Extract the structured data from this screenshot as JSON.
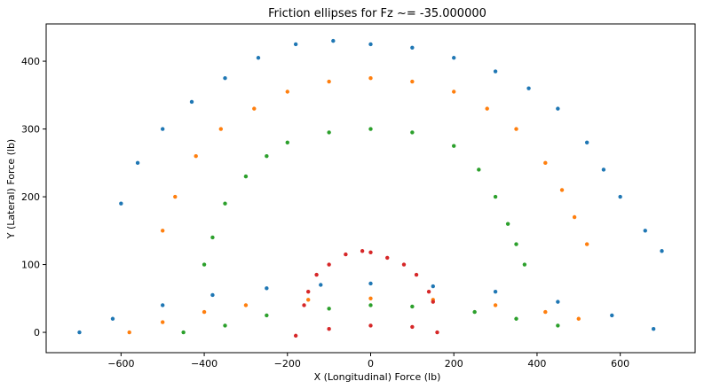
{
  "chart_data": {
    "type": "scatter",
    "title": "Friction ellipses for Fz ~= -35.000000",
    "xlabel": "X (Longitudinal) Force (lb)",
    "ylabel": "Y (Lateral) Force (lb)",
    "xlim": [
      -780,
      780
    ],
    "ylim": [
      -30,
      455
    ],
    "xticks": [
      -600,
      -400,
      -200,
      0,
      200,
      400,
      600
    ],
    "yticks": [
      0,
      100,
      200,
      300,
      400
    ],
    "xtick_labels": [
      "−600",
      "−400",
      "−200",
      "0",
      "200",
      "400",
      "600"
    ],
    "ytick_labels": [
      "0",
      "100",
      "200",
      "300",
      "400"
    ],
    "grid": false,
    "legend": "none",
    "colors": {
      "blue": "#1f77b4",
      "orange": "#ff7f0e",
      "green": "#2ca02c",
      "red": "#d62728"
    },
    "series": [
      {
        "color": "blue",
        "x": [
          -600,
          -560,
          -500,
          -430,
          -350,
          -270,
          -180,
          -90,
          0,
          100,
          200,
          300,
          380,
          450,
          520,
          560,
          600,
          660,
          700,
          -700,
          -620,
          -500,
          -380,
          -250,
          -120,
          0,
          150,
          300,
          450,
          580,
          680
        ],
        "y": [
          190,
          250,
          300,
          340,
          375,
          405,
          425,
          430,
          425,
          420,
          405,
          385,
          360,
          330,
          280,
          240,
          200,
          150,
          120,
          0,
          20,
          40,
          55,
          65,
          70,
          72,
          68,
          60,
          45,
          25,
          5
        ]
      },
      {
        "color": "orange",
        "x": [
          -500,
          -470,
          -420,
          -360,
          -280,
          -200,
          -100,
          0,
          100,
          200,
          280,
          350,
          420,
          460,
          490,
          520,
          -580,
          -500,
          -400,
          -300,
          -150,
          0,
          150,
          300,
          420,
          500
        ],
        "y": [
          150,
          200,
          260,
          300,
          330,
          355,
          370,
          375,
          370,
          355,
          330,
          300,
          250,
          210,
          170,
          130,
          0,
          15,
          30,
          40,
          48,
          50,
          48,
          40,
          30,
          20
        ]
      },
      {
        "color": "green",
        "x": [
          -400,
          -380,
          -350,
          -300,
          -250,
          -200,
          -100,
          0,
          100,
          200,
          260,
          300,
          330,
          350,
          370,
          -450,
          -350,
          -250,
          -100,
          0,
          100,
          250,
          350,
          450
        ],
        "y": [
          100,
          140,
          190,
          230,
          260,
          280,
          295,
          300,
          295,
          275,
          240,
          200,
          160,
          130,
          100,
          0,
          10,
          25,
          35,
          40,
          38,
          30,
          20,
          10
        ]
      },
      {
        "color": "red",
        "x": [
          -160,
          -150,
          -130,
          -100,
          -60,
          -20,
          0,
          40,
          80,
          110,
          140,
          150,
          -180,
          -100,
          0,
          100,
          160
        ],
        "y": [
          40,
          60,
          85,
          100,
          115,
          120,
          118,
          110,
          100,
          85,
          60,
          45,
          -5,
          5,
          10,
          8,
          0
        ]
      }
    ]
  }
}
